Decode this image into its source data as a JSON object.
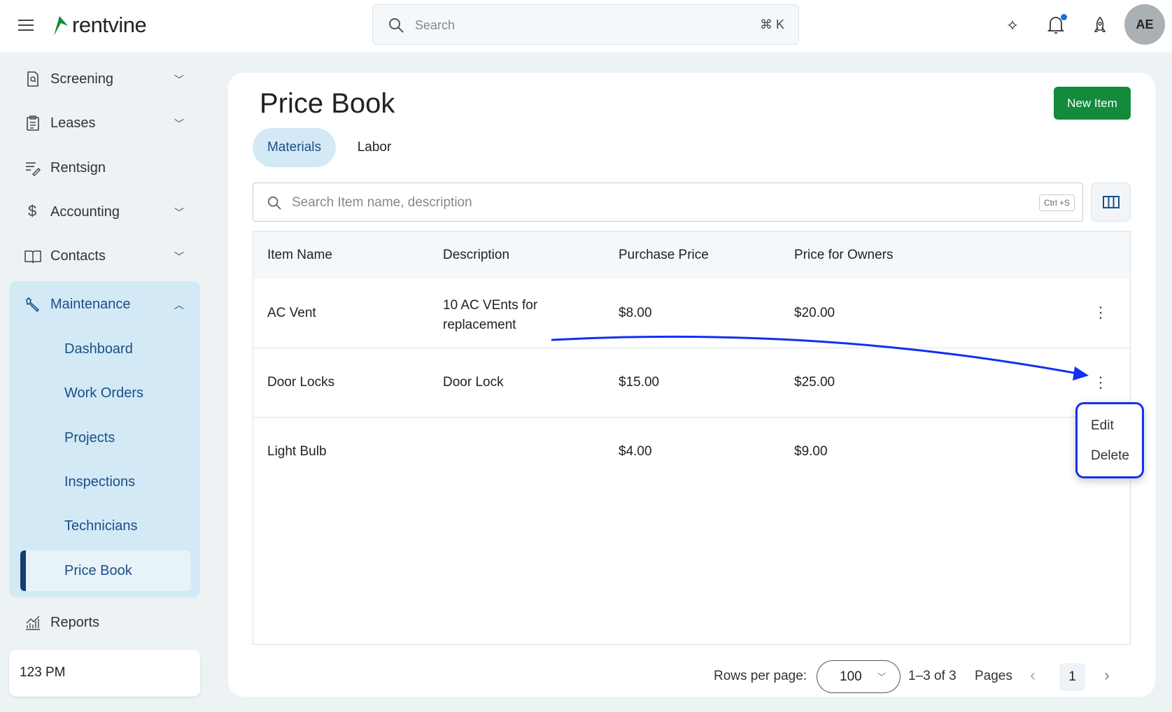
{
  "header": {
    "logo": "rentvine",
    "search_placeholder": "Search",
    "search_shortcut": "⌘ K",
    "avatar": "AE",
    "icons": [
      "menu-icon",
      "sparkle-icon",
      "bell-icon",
      "rocket-icon"
    ],
    "notification_dot_color": "#1a6ed8"
  },
  "sidebar": {
    "items": [
      {
        "label": "Screening",
        "icon": "screening-icon"
      },
      {
        "label": "Leases",
        "icon": "clipboard-icon"
      },
      {
        "label": "Rentsign",
        "icon": "sign-icon"
      },
      {
        "label": "Accounting",
        "icon": "dollar-icon"
      },
      {
        "label": "Contacts",
        "icon": "book-icon"
      }
    ],
    "maintenance": {
      "label": "Maintenance",
      "icon": "wrench-icon",
      "sub": [
        "Dashboard",
        "Work Orders",
        "Projects",
        "Inspections",
        "Technicians",
        "Price Book"
      ],
      "active": "Price Book"
    },
    "reports": "Reports",
    "footer": "123 PM"
  },
  "main": {
    "title": "Price Book",
    "new_button": "New Item",
    "brand_color": "#138a3c",
    "tabs": [
      {
        "label": "Materials",
        "active": true
      },
      {
        "label": "Labor",
        "active": false
      }
    ],
    "search_placeholder": "Search Item name, description",
    "search_shortcut": "Ctrl +S",
    "columns": [
      "Item Name",
      "Description",
      "Purchase Price",
      "Price for Owners"
    ],
    "rows": [
      [
        "AC Vent",
        "10 AC VEnts for replacement",
        "$8.00",
        "$20.00"
      ],
      [
        "Door Locks",
        "Door Lock",
        "$15.00",
        "$25.00"
      ],
      [
        "Light Bulb",
        "",
        "$4.00",
        "$9.00"
      ]
    ],
    "row_menu": [
      "Edit",
      "Delete"
    ],
    "pagination": {
      "rows_per_page_label": "Rows per page:",
      "rows_per_page": "100",
      "range": "1–3 of 3",
      "pages_label": "Pages",
      "page": "1"
    }
  },
  "annotation_color": "#1230f0"
}
